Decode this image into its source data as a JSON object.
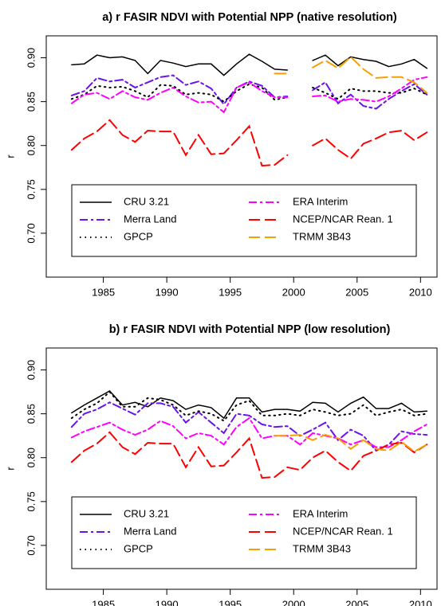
{
  "chart_data": [
    {
      "type": "line",
      "title": "a) r FASIR NDVI with Potential NPP (native resolution)",
      "ylabel": "r",
      "x": [
        1982.5,
        1983.5,
        1984.5,
        1985.5,
        1986.5,
        1987.5,
        1988.5,
        1989.5,
        1990.5,
        1991.5,
        1992.5,
        1993.5,
        1994.5,
        1995.5,
        1996.5,
        1997.5,
        1998.5,
        1999.5,
        2000.5,
        2001.5,
        2002.5,
        2003.5,
        2004.5,
        2005.5,
        2006.5,
        2007.5,
        2008.5,
        2009.5,
        2010.5
      ],
      "series": [
        {
          "name": "CRU 3.21",
          "color": "#000000",
          "linestyle": "solid",
          "values": [
            0.892,
            0.893,
            0.903,
            0.9,
            0.901,
            0.897,
            0.882,
            0.897,
            0.894,
            0.89,
            0.893,
            0.893,
            0.88,
            0.893,
            0.904,
            0.896,
            0.887,
            0.886,
            null,
            0.897,
            0.903,
            0.891,
            0.901,
            0.898,
            0.896,
            0.89,
            0.893,
            0.898,
            0.888
          ]
        },
        {
          "name": "Merra Land",
          "color": "#6a14e8",
          "linestyle": "dashdot",
          "values": [
            0.857,
            0.862,
            0.877,
            0.873,
            0.875,
            0.866,
            0.872,
            0.878,
            0.88,
            0.869,
            0.873,
            0.865,
            0.847,
            0.866,
            0.873,
            0.868,
            0.855,
            0.856,
            null,
            0.863,
            0.872,
            0.848,
            0.858,
            0.845,
            0.842,
            0.853,
            0.862,
            0.87,
            0.858
          ]
        },
        {
          "name": "GPCP",
          "color": "#000000",
          "linestyle": "dotted",
          "values": [
            0.853,
            0.858,
            0.868,
            0.866,
            0.867,
            0.862,
            0.855,
            0.869,
            0.868,
            0.858,
            0.86,
            0.858,
            0.85,
            0.862,
            0.87,
            0.866,
            0.852,
            0.855,
            null,
            0.866,
            0.86,
            0.853,
            0.865,
            0.862,
            0.862,
            0.86,
            0.86,
            0.865,
            0.858
          ]
        },
        {
          "name": "ERA Interim",
          "color": "#ff00ff",
          "linestyle": "dashdot",
          "values": [
            0.848,
            0.858,
            0.86,
            0.853,
            0.862,
            0.855,
            0.852,
            0.86,
            0.866,
            0.856,
            0.849,
            0.85,
            0.838,
            0.866,
            0.872,
            0.862,
            0.855,
            0.855,
            null,
            0.856,
            0.857,
            0.85,
            0.853,
            0.852,
            0.85,
            0.856,
            0.865,
            0.875,
            0.878
          ]
        },
        {
          "name": "NCEP/NCAR Rean. 1",
          "color": "#ff0000",
          "linestyle": "longdash",
          "values": [
            0.795,
            0.808,
            0.816,
            0.829,
            0.812,
            0.804,
            0.817,
            0.816,
            0.816,
            0.789,
            0.812,
            0.79,
            0.791,
            0.806,
            0.822,
            0.777,
            0.778,
            0.789,
            null,
            0.8,
            0.808,
            0.795,
            0.785,
            0.802,
            0.808,
            0.815,
            0.817,
            0.806,
            0.815
          ]
        },
        {
          "name": "TRMM 3B43",
          "color": "#f5a000",
          "linestyle": "longdash",
          "values": [
            null,
            null,
            null,
            null,
            null,
            null,
            null,
            null,
            null,
            null,
            null,
            null,
            null,
            null,
            null,
            null,
            0.882,
            0.882,
            null,
            0.889,
            0.897,
            0.888,
            0.901,
            0.887,
            0.877,
            0.878,
            0.878,
            0.872,
            0.86
          ]
        }
      ],
      "xlim": [
        1980.5,
        2011.3
      ],
      "ylim": [
        0.65,
        0.925
      ],
      "xticks": [
        1985,
        1990,
        1995,
        2000,
        2005,
        2010
      ],
      "yticks": [
        {
          "value": 0.7,
          "label": "0.70"
        },
        0.75,
        {
          "value": 0.8,
          "label": "0.80"
        },
        0.85,
        {
          "value": 0.9,
          "label": "0.90"
        }
      ],
      "legend": "bottom"
    },
    {
      "type": "line",
      "title": "b) r FASIR NDVI with Potential NPP (low resolution)",
      "ylabel": "r",
      "x": [
        1982.5,
        1983.5,
        1984.5,
        1985.5,
        1986.5,
        1987.5,
        1988.5,
        1989.5,
        1990.5,
        1991.5,
        1992.5,
        1993.5,
        1994.5,
        1995.5,
        1996.5,
        1997.5,
        1998.5,
        1999.5,
        2000.5,
        2001.5,
        2002.5,
        2003.5,
        2004.5,
        2005.5,
        2006.5,
        2007.5,
        2008.5,
        2009.5,
        2010.5
      ],
      "series": [
        {
          "name": "CRU 3.21",
          "color": "#000000",
          "linestyle": "solid",
          "values": [
            0.851,
            0.86,
            0.868,
            0.876,
            0.86,
            0.863,
            0.858,
            0.868,
            0.865,
            0.855,
            0.86,
            0.857,
            0.845,
            0.868,
            0.868,
            0.852,
            0.855,
            0.855,
            0.853,
            0.863,
            0.862,
            0.852,
            0.862,
            0.869,
            0.856,
            0.856,
            0.862,
            0.852,
            0.853
          ]
        },
        {
          "name": "Merra Land",
          "color": "#6a14e8",
          "linestyle": "dashdot",
          "values": [
            0.835,
            0.85,
            0.855,
            0.863,
            0.856,
            0.849,
            0.862,
            0.862,
            0.858,
            0.84,
            0.852,
            0.84,
            0.828,
            0.85,
            0.848,
            0.838,
            0.835,
            0.836,
            0.825,
            0.832,
            0.84,
            0.82,
            0.832,
            0.825,
            0.808,
            0.815,
            0.83,
            0.827,
            0.826
          ]
        },
        {
          "name": "GPCP",
          "color": "#000000",
          "linestyle": "dotted",
          "values": [
            0.845,
            0.855,
            0.862,
            0.875,
            0.858,
            0.858,
            0.868,
            0.866,
            0.86,
            0.848,
            0.853,
            0.85,
            0.842,
            0.86,
            0.865,
            0.848,
            0.848,
            0.85,
            0.848,
            0.855,
            0.852,
            0.848,
            0.85,
            0.86,
            0.848,
            0.852,
            0.855,
            0.848,
            0.85
          ]
        },
        {
          "name": "ERA Interim",
          "color": "#ff00ff",
          "linestyle": "dashdot",
          "values": [
            0.823,
            0.83,
            0.835,
            0.84,
            0.832,
            0.826,
            0.832,
            0.842,
            0.836,
            0.822,
            0.828,
            0.825,
            0.815,
            0.835,
            0.845,
            0.822,
            0.825,
            0.825,
            0.815,
            0.828,
            0.825,
            0.822,
            0.815,
            0.82,
            0.812,
            0.812,
            0.82,
            0.83,
            0.838
          ]
        },
        {
          "name": "NCEP/NCAR Rean. 1",
          "color": "#ff0000",
          "linestyle": "longdash",
          "values": [
            0.795,
            0.808,
            0.816,
            0.829,
            0.812,
            0.804,
            0.817,
            0.816,
            0.816,
            0.789,
            0.812,
            0.79,
            0.791,
            0.806,
            0.822,
            0.777,
            0.778,
            0.789,
            0.786,
            0.8,
            0.808,
            0.795,
            0.785,
            0.802,
            0.808,
            0.815,
            0.817,
            0.806,
            0.815
          ]
        },
        {
          "name": "TRMM 3B43",
          "color": "#f5a000",
          "linestyle": "longdash",
          "values": [
            null,
            null,
            null,
            null,
            null,
            null,
            null,
            null,
            null,
            null,
            null,
            null,
            null,
            null,
            null,
            null,
            0.825,
            0.825,
            0.826,
            0.82,
            0.826,
            0.822,
            0.81,
            0.82,
            0.81,
            0.808,
            0.818,
            0.807,
            0.815
          ]
        }
      ],
      "xlim": [
        1980.5,
        2011.3
      ],
      "ylim": [
        0.65,
        0.925
      ],
      "xticks": [
        1985,
        1990,
        1995,
        2000,
        2005,
        2010
      ],
      "yticks": [
        {
          "value": 0.7,
          "label": "0.70"
        },
        0.75,
        {
          "value": 0.8,
          "label": "0.80"
        },
        0.85,
        {
          "value": 0.9,
          "label": "0.90"
        }
      ],
      "legend": "bottom"
    }
  ]
}
